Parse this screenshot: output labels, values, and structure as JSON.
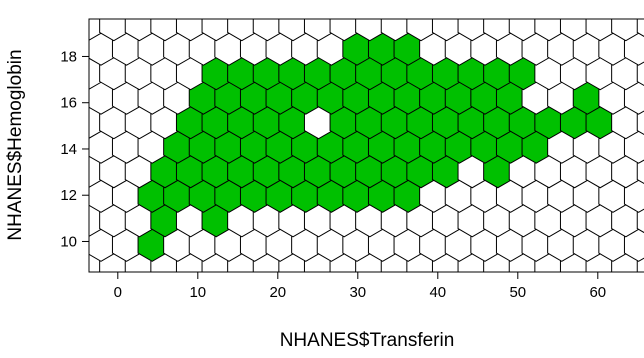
{
  "chart_data": {
    "type": "hexbin",
    "xlabel": "NHANES$Transferin",
    "ylabel": "NHANES$Hemoglobin",
    "xlim": [
      -3.6,
      65.9
    ],
    "ylim": [
      8.68,
      19.62
    ],
    "x_ticks": [
      "0",
      "10",
      "20",
      "30",
      "40",
      "50",
      "60"
    ],
    "y_ticks": [
      "10",
      "12",
      "14",
      "16",
      "18"
    ],
    "grid": false,
    "hex_dx": 3.2,
    "hex_dy": 1.06,
    "hex_origin": [
      -2.1,
      9.85
    ],
    "colors": {
      "empty": "#ffffff",
      "filled": "#00c000",
      "highlight": "#ff0000",
      "edge": "#000000"
    },
    "filled_rows": [
      {
        "y": 9.85,
        "x": [
          4.3
        ]
      },
      {
        "y": 10.91,
        "x": [
          5.9,
          12.3
        ]
      },
      {
        "y": 11.97,
        "x": [
          4.3,
          7.5,
          10.7,
          13.9,
          17.1,
          20.3,
          23.5,
          26.7,
          29.9,
          33.1,
          36.3
        ]
      },
      {
        "y": 13.03,
        "x": [
          5.9,
          9.1,
          12.3,
          15.5,
          18.7,
          21.9,
          25.1,
          28.3,
          31.5,
          34.7,
          37.9,
          41.1,
          47.5
        ]
      },
      {
        "y": 14.09,
        "x": [
          7.5,
          10.7,
          13.9,
          17.1,
          20.3,
          23.5,
          26.7,
          29.9,
          33.1,
          36.3,
          39.5,
          42.7,
          45.9,
          49.1,
          52.3
        ]
      },
      {
        "y": 15.15,
        "x": [
          9.1,
          12.3,
          15.5,
          18.7,
          21.9,
          28.3,
          31.5,
          34.7,
          37.9,
          41.1,
          44.3,
          47.5,
          50.7,
          53.9,
          57.1,
          60.3
        ]
      },
      {
        "y": 16.21,
        "x": [
          10.7,
          13.9,
          17.1,
          20.3,
          23.5,
          26.7,
          29.9,
          33.1,
          36.3,
          39.5,
          42.7,
          45.9,
          49.1,
          58.7
        ]
      },
      {
        "y": 17.27,
        "x": [
          12.3,
          15.5,
          18.7,
          21.9,
          25.1,
          28.3,
          31.5,
          34.7,
          37.9,
          41.1,
          44.3,
          47.5,
          50.7
        ]
      },
      {
        "y": 18.33,
        "x": [
          29.9,
          33.1,
          36.3
        ]
      }
    ],
    "highlight_cells": [
      {
        "x": 25.1,
        "y": 14.62
      }
    ]
  }
}
